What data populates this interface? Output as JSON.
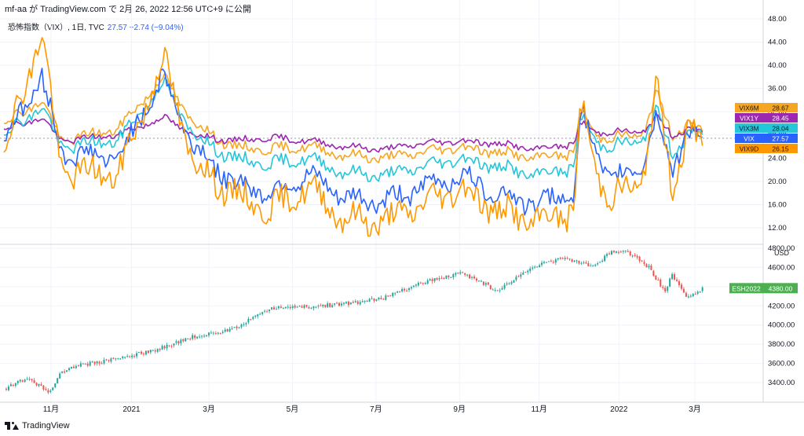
{
  "header": {
    "text": "mf-aa が TradingView.com で 2月 26, 2022 12:56 UTC+9 に公開"
  },
  "legend": {
    "title": "恐怖指数（VIX）, 1日, TVC",
    "values": "27.57  −2.74 (−9.04%)"
  },
  "footer": {
    "brand": "TradingView"
  },
  "colors": {
    "VIX6M": "#f5a623",
    "VIX1Y": "#9c27b0",
    "VIX3M": "#26c6da",
    "VIX": "#2962ff",
    "VIX9D": "#ff9800",
    "up": "#26a69a",
    "down": "#ef5350",
    "grid": "#f0f3fa",
    "esh": "#4caf50"
  },
  "chart_data": [
    {
      "type": "line",
      "title": "",
      "x_tick_labels": [
        "11月",
        "2021",
        "3月",
        "5月",
        "7月",
        "9月",
        "11月",
        "2022",
        "3月"
      ],
      "y_tick_labels": [
        "12.00",
        "16.00",
        "20.00",
        "24.00",
        "28.00",
        "32.00",
        "36.00",
        "40.00",
        "44.00",
        "48.00"
      ],
      "ylim": [
        9.5,
        49
      ],
      "grid": true,
      "legend_position": "right (price labels)",
      "series": [
        {
          "name": "VIX6M",
          "last": "28.67",
          "color": "#f5a623",
          "anchors": [
            [
              0,
              30
            ],
            [
              0.05,
              34
            ],
            [
              0.075,
              27
            ],
            [
              0.15,
              29
            ],
            [
              0.21,
              38
            ],
            [
              0.25,
              30
            ],
            [
              0.3,
              26
            ],
            [
              0.35,
              25.5
            ],
            [
              0.4,
              26
            ],
            [
              0.45,
              24.5
            ],
            [
              0.5,
              24
            ],
            [
              0.55,
              25
            ],
            [
              0.6,
              26
            ],
            [
              0.65,
              25
            ],
            [
              0.7,
              24
            ],
            [
              0.75,
              25
            ],
            [
              0.76,
              32
            ],
            [
              0.78,
              28
            ],
            [
              0.8,
              27.5
            ],
            [
              0.84,
              28
            ],
            [
              0.86,
              35
            ],
            [
              0.88,
              28
            ],
            [
              0.9,
              30
            ],
            [
              0.92,
              28.67
            ]
          ]
        },
        {
          "name": "VIX1Y",
          "last": "28.45",
          "color": "#9c27b0",
          "anchors": [
            [
              0,
              29
            ],
            [
              0.05,
              31
            ],
            [
              0.075,
              27
            ],
            [
              0.15,
              28
            ],
            [
              0.21,
              31
            ],
            [
              0.25,
              28
            ],
            [
              0.3,
              27
            ],
            [
              0.35,
              27.5
            ],
            [
              0.4,
              27
            ],
            [
              0.45,
              26
            ],
            [
              0.5,
              25.5
            ],
            [
              0.55,
              26.5
            ],
            [
              0.6,
              27
            ],
            [
              0.65,
              26.5
            ],
            [
              0.7,
              25.5
            ],
            [
              0.75,
              26.5
            ],
            [
              0.76,
              30
            ],
            [
              0.78,
              28.5
            ],
            [
              0.8,
              28.5
            ],
            [
              0.84,
              28.5
            ],
            [
              0.86,
              31
            ],
            [
              0.88,
              28
            ],
            [
              0.9,
              29
            ],
            [
              0.92,
              28.45
            ]
          ]
        },
        {
          "name": "VIX3M",
          "last": "28.04",
          "color": "#26c6da",
          "anchors": [
            [
              0,
              28
            ],
            [
              0.05,
              33
            ],
            [
              0.075,
              26
            ],
            [
              0.15,
              27
            ],
            [
              0.21,
              37
            ],
            [
              0.25,
              28
            ],
            [
              0.3,
              24
            ],
            [
              0.35,
              23
            ],
            [
              0.4,
              24
            ],
            [
              0.45,
              21.5
            ],
            [
              0.5,
              21
            ],
            [
              0.55,
              22.5
            ],
            [
              0.6,
              24
            ],
            [
              0.65,
              22.5
            ],
            [
              0.7,
              21
            ],
            [
              0.75,
              22.5
            ],
            [
              0.76,
              31
            ],
            [
              0.78,
              27
            ],
            [
              0.8,
              26
            ],
            [
              0.84,
              27
            ],
            [
              0.86,
              32
            ],
            [
              0.88,
              25
            ],
            [
              0.9,
              28
            ],
            [
              0.92,
              28.04
            ]
          ]
        },
        {
          "name": "VIX",
          "last": "27.57",
          "color": "#2962ff",
          "anchors": [
            [
              0,
              27
            ],
            [
              0.05,
              38
            ],
            [
              0.075,
              25
            ],
            [
              0.15,
              24
            ],
            [
              0.21,
              38
            ],
            [
              0.25,
              26
            ],
            [
              0.3,
              20
            ],
            [
              0.35,
              18
            ],
            [
              0.4,
              21
            ],
            [
              0.45,
              17
            ],
            [
              0.5,
              16.5
            ],
            [
              0.55,
              19
            ],
            [
              0.6,
              21
            ],
            [
              0.65,
              18
            ],
            [
              0.7,
              16
            ],
            [
              0.75,
              18
            ],
            [
              0.76,
              32
            ],
            [
              0.78,
              25
            ],
            [
              0.8,
              20
            ],
            [
              0.84,
              23
            ],
            [
              0.86,
              31
            ],
            [
              0.88,
              22
            ],
            [
              0.9,
              29
            ],
            [
              0.92,
              27.57
            ]
          ]
        },
        {
          "name": "VIX9D",
          "last": "26.15",
          "color": "#ff9800",
          "anchors": [
            [
              0,
              25
            ],
            [
              0.05,
              46
            ],
            [
              0.075,
              22
            ],
            [
              0.15,
              21
            ],
            [
              0.21,
              41
            ],
            [
              0.25,
              23
            ],
            [
              0.3,
              18
            ],
            [
              0.35,
              15
            ],
            [
              0.4,
              19
            ],
            [
              0.45,
              13.5
            ],
            [
              0.5,
              13
            ],
            [
              0.55,
              16
            ],
            [
              0.6,
              19
            ],
            [
              0.65,
              15
            ],
            [
              0.7,
              13
            ],
            [
              0.75,
              15
            ],
            [
              0.76,
              33
            ],
            [
              0.78,
              22
            ],
            [
              0.8,
              17
            ],
            [
              0.84,
              20
            ],
            [
              0.86,
              36
            ],
            [
              0.88,
              19
            ],
            [
              0.9,
              29
            ],
            [
              0.92,
              26.15
            ]
          ]
        }
      ]
    },
    {
      "type": "candlestick",
      "title": "",
      "series_name": "ESH2022",
      "last": "4380.00",
      "unit": "USD",
      "y_tick_labels": [
        "3400.00",
        "3600.00",
        "3800.00",
        "4000.00",
        "4200.00",
        "4400.00",
        "4600.00",
        "4800.00"
      ],
      "ylim": [
        3230,
        4830
      ],
      "grid": true,
      "close_anchors": [
        [
          0,
          3330
        ],
        [
          0.03,
          3450
        ],
        [
          0.06,
          3300
        ],
        [
          0.075,
          3510
        ],
        [
          0.1,
          3580
        ],
        [
          0.15,
          3650
        ],
        [
          0.2,
          3740
        ],
        [
          0.25,
          3880
        ],
        [
          0.3,
          3950
        ],
        [
          0.35,
          4170
        ],
        [
          0.4,
          4190
        ],
        [
          0.45,
          4220
        ],
        [
          0.5,
          4280
        ],
        [
          0.55,
          4440
        ],
        [
          0.6,
          4540
        ],
        [
          0.63,
          4440
        ],
        [
          0.65,
          4350
        ],
        [
          0.7,
          4620
        ],
        [
          0.74,
          4700
        ],
        [
          0.76,
          4640
        ],
        [
          0.78,
          4620
        ],
        [
          0.8,
          4770
        ],
        [
          0.82,
          4770
        ],
        [
          0.85,
          4600
        ],
        [
          0.87,
          4350
        ],
        [
          0.88,
          4520
        ],
        [
          0.9,
          4280
        ],
        [
          0.92,
          4380
        ]
      ]
    }
  ]
}
